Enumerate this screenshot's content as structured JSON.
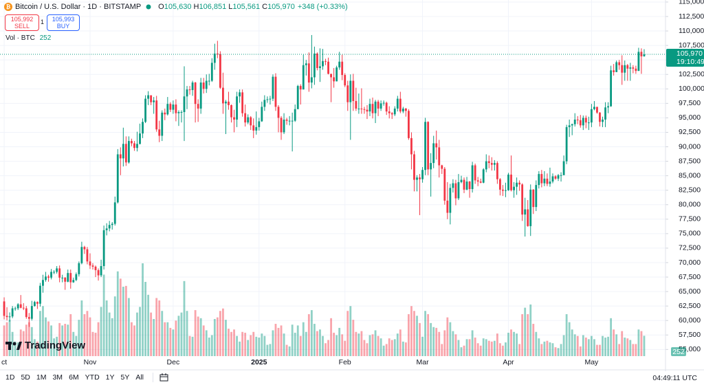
{
  "chart_data": {
    "type": "candlestick",
    "legend": {
      "symbol": "Bitcoin / U.S. Dollar · 1D · BITSTAMP",
      "items": [
        {
          "key": "O",
          "value": "105,630"
        },
        {
          "key": "H",
          "value": "106,851"
        },
        {
          "key": "L",
          "value": "105,561"
        },
        {
          "key": "C",
          "value": "105,970"
        }
      ],
      "change": "+348 (+0.33%)"
    },
    "sell": {
      "price": "105,992",
      "label": "SELL"
    },
    "spread": "1",
    "buy": {
      "price": "105,993",
      "label": "BUY"
    },
    "volume_title": "Vol · BTC",
    "price_label": "105,970",
    "countdown": "19:10:49",
    "brand": "TradingView",
    "timeframes": [
      "1D",
      "5D",
      "1M",
      "3M",
      "6M",
      "YTD",
      "1Y",
      "5Y",
      "All"
    ],
    "clock": "04:49:11 UTC",
    "up_color": "#089981",
    "down_color": "#f23645",
    "grid": true,
    "xlim": [
      -1.5,
      238.7
    ],
    "ylim": [
      53850,
      115350
    ],
    "xticks": [
      {
        "value": 0,
        "label": "ct"
      },
      {
        "value": 31,
        "label": "Nov"
      },
      {
        "value": 61,
        "label": "Dec"
      },
      {
        "value": 92,
        "label": "2025"
      },
      {
        "value": 123,
        "label": "Feb"
      },
      {
        "value": 151,
        "label": "Mar"
      },
      {
        "value": 182,
        "label": "Apr"
      },
      {
        "value": 212,
        "label": "May"
      }
    ],
    "yticks": [
      {
        "value": 55000,
        "label": "55,000"
      },
      {
        "value": 57500,
        "label": "57,500"
      },
      {
        "value": 60000,
        "label": "60,000"
      },
      {
        "value": 62500,
        "label": "62,500"
      },
      {
        "value": 65000,
        "label": "65,000"
      },
      {
        "value": 67500,
        "label": "67,500"
      },
      {
        "value": 70000,
        "label": "70,000"
      },
      {
        "value": 72500,
        "label": "72,500"
      },
      {
        "value": 75000,
        "label": "75,000"
      },
      {
        "value": 77500,
        "label": "77,500"
      },
      {
        "value": 80000,
        "label": "80,000"
      },
      {
        "value": 82500,
        "label": "82,500"
      },
      {
        "value": 85000,
        "label": "85,000"
      },
      {
        "value": 87500,
        "label": "87,500"
      },
      {
        "value": 90000,
        "label": "90,000"
      },
      {
        "value": 92500,
        "label": "92,500"
      },
      {
        "value": 95000,
        "label": "95,000"
      },
      {
        "value": 97500,
        "label": "97,500"
      },
      {
        "value": 100000,
        "label": "100,000"
      },
      {
        "value": 102500,
        "label": "102,500"
      },
      {
        "value": 105000,
        "label": "105,000"
      },
      {
        "value": 107500,
        "label": "107,500"
      },
      {
        "value": 110000,
        "label": "110,000"
      },
      {
        "value": 112500,
        "label": "112,500"
      },
      {
        "value": 115000,
        "label": "115,000"
      }
    ],
    "open": [
      63300,
      60800,
      60600,
      60700,
      62100,
      62100,
      62800,
      62200,
      62100,
      60600,
      60300,
      62500,
      63200,
      62900,
      66000,
      67000,
      67600,
      67400,
      68400,
      68400,
      69000,
      67400,
      67400,
      66700,
      68200,
      66600,
      67000,
      68000,
      69900,
      72700,
      72300,
      70200,
      69500,
      69300,
      68700,
      67800,
      69400,
      75600,
      75900,
      76500,
      76700,
      80400,
      88700,
      88000,
      90500,
      87300,
      91000,
      90600,
      89800,
      90500,
      92300,
      94300,
      98300,
      98900,
      97700,
      98000,
      93000,
      91900,
      95900,
      95600,
      97400,
      96400,
      97300,
      95800,
      96000,
      96000,
      98700,
      99900,
      99800,
      101100,
      97400,
      96600,
      101100,
      100000,
      101400,
      101400,
      104500,
      106100,
      106000,
      100200,
      97500,
      97800,
      97200,
      95100,
      94700,
      98700,
      99400,
      95800,
      94200,
      95100,
      93700,
      92800,
      93400,
      94400,
      96900,
      98100,
      98200,
      98300,
      102100,
      96900,
      95000,
      92500,
      94700,
      94500,
      94500,
      94500,
      96500,
      100500,
      99900,
      104100,
      104400,
      101100,
      102000,
      106100,
      103600,
      103900,
      104800,
      104700,
      102600,
      102000,
      101300,
      103700,
      104700,
      102400,
      100600,
      97700,
      101400,
      97900,
      96600,
      96600,
      96500,
      96400,
      96100,
      97400,
      95800,
      97800,
      96600,
      97500,
      97600,
      96100,
      95800,
      95600,
      96600,
      98300,
      96100,
      96600,
      96200,
      91500,
      88700,
      84300,
      84700,
      84400,
      86000,
      94300,
      86100,
      87200,
      90600,
      89900,
      86800,
      86200,
      80700,
      78600,
      82900,
      83700,
      81100,
      83900,
      84300,
      82600,
      84000,
      82700,
      86800,
      84200,
      84000,
      83800,
      86100,
      87500,
      87200,
      86900,
      87200,
      84400,
      82600,
      82400,
      82500,
      85200,
      82500,
      83100,
      83800,
      83500,
      78300,
      79200,
      76300,
      82600,
      79600,
      83400,
      85300,
      83700,
      84500,
      83600,
      84000,
      84900,
      84500,
      85100,
      85100,
      87500,
      93400,
      93700,
      93900,
      94700,
      94600,
      93700,
      95000,
      94200,
      94200,
      96500,
      96900,
      95900,
      94300,
      94700,
      96800,
      97000,
      103200,
      102900,
      104600,
      104100,
      102800,
      104100,
      103500,
      103700,
      103500,
      103100,
      106400,
      105630
    ],
    "high": [
      64000,
      62300,
      61400,
      62500,
      62400,
      63000,
      64400,
      63000,
      62500,
      61300,
      63400,
      63400,
      63300,
      66500,
      67900,
      68400,
      67900,
      68900,
      68700,
      69400,
      69500,
      67900,
      67500,
      68800,
      68800,
      67400,
      68300,
      70200,
      73600,
      72900,
      72700,
      71600,
      69900,
      69500,
      69000,
      70500,
      76400,
      76800,
      77200,
      77000,
      81400,
      89600,
      89900,
      93300,
      91800,
      91800,
      91400,
      91000,
      92600,
      94000,
      94900,
      98900,
      99600,
      98700,
      98600,
      98800,
      94500,
      96300,
      96600,
      98600,
      97700,
      98000,
      98200,
      96300,
      96300,
      103900,
      100500,
      100500,
      101400,
      101200,
      98200,
      101900,
      101900,
      102500,
      102600,
      105300,
      107800,
      108300,
      106500,
      102800,
      98100,
      99500,
      97300,
      96400,
      99500,
      99900,
      99900,
      97300,
      95600,
      95300,
      94900,
      96100,
      95000,
      97800,
      98900,
      98700,
      98800,
      102500,
      102700,
      97200,
      95300,
      95800,
      95000,
      95300,
      95900,
      97300,
      100700,
      100800,
      105900,
      105000,
      106300,
      109300,
      107300,
      106300,
      107000,
      106900,
      105200,
      105400,
      102600,
      103600,
      104000,
      106400,
      105900,
      102700,
      101400,
      102500,
      102600,
      100200,
      99200,
      100100,
      96900,
      97200,
      98300,
      98500,
      98100,
      98100,
      98000,
      98000,
      97800,
      97000,
      96000,
      97000,
      98800,
      99500,
      96900,
      96700,
      96500,
      92500,
      89300,
      85100,
      85300,
      86500,
      95000,
      94400,
      88900,
      91900,
      92800,
      91200,
      86900,
      86500,
      83900,
      83600,
      84400,
      84300,
      85300,
      85000,
      84700,
      84800,
      84100,
      87400,
      87100,
      84800,
      84500,
      86300,
      88700,
      88500,
      88200,
      87700,
      87500,
      84600,
      83400,
      83800,
      85500,
      88500,
      83900,
      84700,
      84200,
      83700,
      81200,
      80800,
      83500,
      82700,
      84200,
      85800,
      86000,
      85800,
      85400,
      86400,
      85400,
      85100,
      85300,
      85600,
      88500,
      93800,
      94700,
      94000,
      95800,
      95300,
      95500,
      95400,
      95400,
      95200,
      97400,
      97900,
      96900,
      96000,
      95200,
      97700,
      97700,
      104000,
      104300,
      104900,
      105000,
      105800,
      104900,
      104300,
      104500,
      104100,
      104000,
      107100,
      107000,
      106851
    ],
    "low": [
      60200,
      60000,
      59800,
      60400,
      61700,
      61800,
      62100,
      61800,
      60300,
      58900,
      60000,
      62400,
      62000,
      62400,
      64800,
      66700,
      66700,
      67100,
      68000,
      68100,
      66600,
      66600,
      65300,
      66600,
      65500,
      66500,
      66800,
      67600,
      69700,
      71500,
      69700,
      68900,
      68800,
      67500,
      66900,
      67500,
      68800,
      74700,
      75400,
      75700,
      76400,
      80200,
      85100,
      86600,
      86700,
      87100,
      90100,
      89300,
      89200,
      90400,
      91500,
      94100,
      97200,
      97200,
      95700,
      92600,
      90800,
      91000,
      94600,
      95400,
      96000,
      95700,
      94400,
      93600,
      94200,
      91000,
      96500,
      99000,
      98800,
      94200,
      94300,
      95700,
      99200,
      99300,
      100600,
      101200,
      103300,
      105300,
      100000,
      95700,
      92200,
      96400,
      94200,
      92500,
      93400,
      97600,
      95200,
      93500,
      93900,
      92900,
      91500,
      92100,
      92800,
      94300,
      96200,
      97600,
      97300,
      97900,
      96200,
      92500,
      91200,
      92200,
      93800,
      93700,
      89200,
      94300,
      96500,
      97300,
      99900,
      102300,
      99500,
      100100,
      100700,
      103200,
      101200,
      103300,
      104100,
      102500,
      97700,
      100200,
      101300,
      103300,
      101500,
      100300,
      96200,
      91200,
      96200,
      96200,
      95700,
      95700,
      95700,
      94800,
      95300,
      94900,
      94100,
      95300,
      96200,
      97100,
      95500,
      94900,
      94800,
      95300,
      96100,
      95800,
      95800,
      95200,
      91200,
      86100,
      82300,
      82300,
      78200,
      83800,
      85100,
      85100,
      81400,
      86300,
      87800,
      84700,
      85300,
      80000,
      77500,
      76600,
      82100,
      79900,
      80800,
      83700,
      82000,
      82500,
      81200,
      82100,
      83600,
      83200,
      83700,
      83700,
      85600,
      86300,
      85900,
      85900,
      83600,
      81600,
      81500,
      81300,
      82400,
      82300,
      81200,
      81700,
      82400,
      77200,
      74500,
      76200,
      74600,
      78400,
      78900,
      82800,
      83000,
      83200,
      83200,
      83100,
      83700,
      84300,
      84100,
      84000,
      85100,
      87000,
      91700,
      92000,
      93500,
      93900,
      93300,
      92900,
      93200,
      92900,
      93400,
      96300,
      95700,
      93500,
      93400,
      93400,
      95800,
      96900,
      102300,
      102900,
      103300,
      100700,
      101400,
      101400,
      101400,
      102700,
      102600,
      103100,
      102600,
      105561
    ],
    "close": [
      60800,
      60600,
      60700,
      62100,
      62100,
      62800,
      62200,
      62100,
      60600,
      60300,
      62500,
      63200,
      62900,
      66000,
      67000,
      67600,
      67400,
      68400,
      68400,
      69000,
      67400,
      67400,
      66700,
      68200,
      66600,
      67000,
      68000,
      69900,
      72700,
      72300,
      70200,
      69500,
      69300,
      68700,
      67800,
      69400,
      75600,
      75900,
      76500,
      76700,
      80400,
      88700,
      88000,
      90500,
      87300,
      91000,
      90600,
      89800,
      90500,
      92300,
      94300,
      98300,
      98900,
      97700,
      98000,
      93000,
      91900,
      95900,
      95600,
      97400,
      96400,
      97300,
      95800,
      96000,
      96000,
      98700,
      99900,
      99800,
      101100,
      97400,
      96600,
      101100,
      100000,
      101400,
      101400,
      104500,
      106100,
      106000,
      100200,
      97500,
      97800,
      97200,
      95100,
      94700,
      98700,
      99400,
      95800,
      94200,
      95100,
      93700,
      92800,
      93400,
      94400,
      96900,
      98100,
      98200,
      98300,
      102100,
      96900,
      95000,
      92500,
      94700,
      94500,
      94500,
      94500,
      96500,
      100500,
      99900,
      104100,
      104400,
      101100,
      102000,
      106100,
      103600,
      103900,
      104800,
      104700,
      102600,
      102000,
      101300,
      103700,
      104700,
      102400,
      100600,
      97700,
      101400,
      97900,
      96600,
      96600,
      96500,
      96400,
      96100,
      97400,
      95800,
      97800,
      96600,
      97500,
      97600,
      96100,
      95800,
      95600,
      96600,
      98300,
      96100,
      96600,
      96200,
      91500,
      88700,
      84300,
      84700,
      84400,
      86000,
      94300,
      86100,
      87200,
      90600,
      89900,
      86800,
      86200,
      80700,
      78600,
      82900,
      83700,
      81100,
      83900,
      84300,
      82600,
      84000,
      82700,
      86800,
      84200,
      84000,
      83800,
      86100,
      87500,
      87200,
      86900,
      87200,
      84400,
      82600,
      82400,
      82500,
      85200,
      82500,
      83100,
      83800,
      83500,
      78300,
      79200,
      76300,
      82600,
      79600,
      83400,
      85300,
      83700,
      84500,
      83600,
      84000,
      84900,
      84500,
      85100,
      85100,
      87500,
      93400,
      93700,
      93900,
      94700,
      94600,
      93700,
      95000,
      94200,
      94200,
      96500,
      96900,
      95900,
      94300,
      94700,
      96800,
      97000,
      103200,
      102900,
      104600,
      104100,
      102800,
      104100,
      103500,
      103700,
      103500,
      103100,
      106400,
      105620,
      105970
    ],
    "volume": [
      380,
      420,
      450,
      300,
      180,
      170,
      330,
      310,
      390,
      420,
      360,
      210,
      180,
      560,
      620,
      480,
      430,
      380,
      220,
      240,
      410,
      380,
      400,
      390,
      520,
      300,
      250,
      450,
      690,
      520,
      560,
      480,
      300,
      290,
      420,
      610,
      1010,
      690,
      540,
      470,
      740,
      1050,
      960,
      860,
      870,
      720,
      420,
      380,
      540,
      610,
      1150,
      920,
      760,
      540,
      460,
      720,
      690,
      560,
      420,
      420,
      350,
      330,
      440,
      500,
      540,
      930,
      560,
      250,
      240,
      570,
      490,
      470,
      380,
      320,
      230,
      260,
      460,
      480,
      560,
      590,
      450,
      340,
      300,
      330,
      250,
      180,
      300,
      290,
      200,
      260,
      300,
      240,
      230,
      280,
      250,
      140,
      150,
      320,
      400,
      350,
      380,
      280,
      140,
      120,
      390,
      290,
      380,
      250,
      420,
      300,
      520,
      570,
      400,
      310,
      330,
      250,
      160,
      200,
      470,
      290,
      260,
      350,
      270,
      190,
      560,
      620,
      450,
      300,
      280,
      310,
      200,
      160,
      260,
      270,
      320,
      250,
      220,
      130,
      150,
      220,
      200,
      210,
      280,
      330,
      180,
      170,
      520,
      620,
      560,
      500,
      410,
      240,
      560,
      520,
      410,
      360,
      350,
      300,
      150,
      320,
      480,
      420,
      310,
      270,
      200,
      110,
      130,
      210,
      210,
      320,
      230,
      160,
      130,
      220,
      210,
      190,
      180,
      190,
      280,
      160,
      130,
      170,
      290,
      330,
      300,
      280,
      150,
      520,
      600,
      520,
      640,
      400,
      300,
      220,
      150,
      180,
      190,
      170,
      160,
      110,
      100,
      150,
      260,
      520,
      420,
      330,
      270,
      250,
      120,
      260,
      230,
      210,
      250,
      210,
      140,
      140,
      250,
      230,
      240,
      470,
      330,
      270,
      150,
      310,
      230,
      220,
      200,
      150,
      150,
      330,
      310,
      252
    ]
  }
}
